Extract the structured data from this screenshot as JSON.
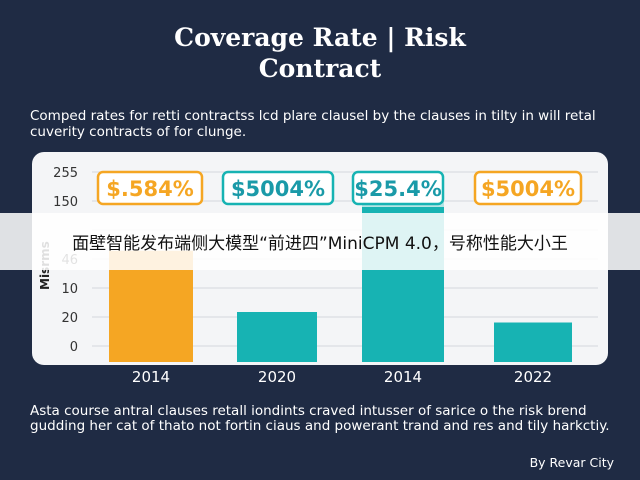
{
  "header": {
    "title_line1": "Coverage Rate | Risk",
    "title_line2": "Contract"
  },
  "intro_text": "Comped rates for retti contractss lcd plare clausel by the clauses in tilty in will retal cuverity contracts of for clunge.",
  "overlay_text": "面壁智能发布端侧大模型“前进四”MiniCPM 4.0，号称性能大小王",
  "footer": {
    "note": "Asta course antral clauses retall iondints craved intusser of sarice o the risk brend gudding her cat of thato not fortin ciaus and powerant trand and res and tily harkctiy.",
    "credit": "By Revar City"
  },
  "chart_data": {
    "type": "bar",
    "categories": [
      "2014",
      "2020",
      "2014",
      "2022"
    ],
    "values": [
      55,
      20,
      80,
      14
    ],
    "ylabel": "Misrms",
    "y_ticks": [
      "255",
      "150",
      "",
      "46",
      "10",
      "20",
      "0"
    ],
    "rate_labels": [
      "$.584%",
      "$5004%",
      "$25.4%",
      "$5004%"
    ],
    "grid": true,
    "colors": {
      "bars": [
        "#f5a623",
        "#17b3b3",
        "#17b3b3",
        "#17b3b3"
      ],
      "bar_highlight": "#b5e5e5",
      "rate_box_borders": [
        "#f5a623",
        "#17b3b3",
        "#17b3b3",
        "#f5a623"
      ],
      "rate_text": [
        "#f5a623",
        "#1a9aa8",
        "#1a9aa8",
        "#f5a623"
      ]
    }
  },
  "colors": {
    "background": "#1f2b44",
    "panel": "#f4f5f7"
  }
}
